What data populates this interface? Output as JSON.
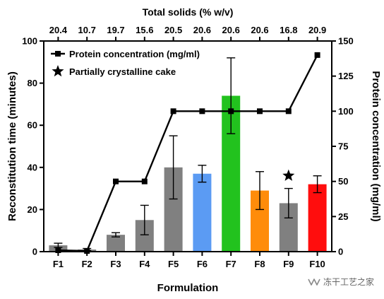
{
  "chart_data": {
    "type": "bar",
    "categories": [
      "F1",
      "F2",
      "F3",
      "F4",
      "F5",
      "F6",
      "F7",
      "F8",
      "F9",
      "F10"
    ],
    "top_axis": {
      "title": "Total solids (% w/v)",
      "labels": [
        "20.4",
        "10.7",
        "19.7",
        "15.6",
        "20.5",
        "20.6",
        "20.6",
        "20.6",
        "16.8",
        "20.9"
      ]
    },
    "xlabel": "Formulation",
    "ylabel": "Reconstitution time (minutes)",
    "y2label": "Protein concentration (mg/ml)",
    "ylim": [
      0,
      100
    ],
    "y_ticks": [
      "0",
      "20",
      "40",
      "60",
      "80",
      "100"
    ],
    "y2lim": [
      0,
      150
    ],
    "y2_ticks": [
      "0",
      "25",
      "50",
      "75",
      "100",
      "125",
      "150"
    ],
    "grid": false,
    "bars": {
      "values": [
        3,
        1,
        8,
        15,
        40,
        37,
        74,
        29,
        23,
        32
      ],
      "errors": [
        1,
        0.5,
        1,
        7,
        15,
        4,
        18,
        9,
        7,
        4
      ],
      "colors": [
        "#808080",
        "#808080",
        "#808080",
        "#808080",
        "#808080",
        "#5b9bf3",
        "#22c21e",
        "#ff8c0a",
        "#808080",
        "#ff0d0d"
      ]
    },
    "series": [
      {
        "name": "Protein concentration (mg/ml)",
        "type": "line",
        "axis": "right",
        "values": [
          1,
          0.5,
          50,
          50,
          100,
          100,
          100,
          100,
          100,
          140
        ],
        "color": "#000000"
      }
    ],
    "legend": {
      "placement": "top-left",
      "entries": [
        "Protein concentration (mg/ml)",
        "Partially crystalline cake"
      ]
    },
    "annotations": [
      {
        "category": "F9",
        "marker": "star",
        "meaning": "Partially crystalline cake"
      }
    ]
  },
  "watermark": {
    "text": "冻干工艺之家",
    "icon": "wechat-channel-icon"
  }
}
